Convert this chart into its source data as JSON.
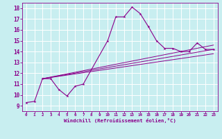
{
  "background_color": "#c8eef0",
  "grid_color": "#ffffff",
  "line_color": "#8b008b",
  "xlabel": "Windchill (Refroidissement éolien,°C)",
  "xlim": [
    -0.5,
    23.5
  ],
  "ylim": [
    8.5,
    18.5
  ],
  "yticks": [
    9,
    10,
    11,
    12,
    13,
    14,
    15,
    16,
    17,
    18
  ],
  "xticks": [
    0,
    1,
    2,
    3,
    4,
    5,
    6,
    7,
    8,
    9,
    10,
    11,
    12,
    13,
    14,
    15,
    16,
    17,
    18,
    19,
    20,
    21,
    22,
    23
  ],
  "curve_x": [
    0,
    1,
    2,
    3,
    4,
    5,
    6,
    7,
    10,
    11,
    12,
    13,
    14,
    15,
    16,
    17,
    18,
    19,
    20,
    21,
    22,
    23
  ],
  "curve_y": [
    9.3,
    9.4,
    11.5,
    11.5,
    10.5,
    9.9,
    10.8,
    11.0,
    15.0,
    17.2,
    17.2,
    18.1,
    17.5,
    16.3,
    15.0,
    14.3,
    14.3,
    14.0,
    14.0,
    14.8,
    14.2,
    14.2
  ],
  "line1_x": [
    2,
    23
  ],
  "line1_y": [
    11.5,
    14.2
  ],
  "line2_x": [
    2,
    23
  ],
  "line2_y": [
    11.5,
    13.8
  ],
  "line3_x": [
    2,
    23
  ],
  "line3_y": [
    11.5,
    14.6
  ],
  "figsize": [
    3.2,
    2.0
  ],
  "dpi": 100
}
